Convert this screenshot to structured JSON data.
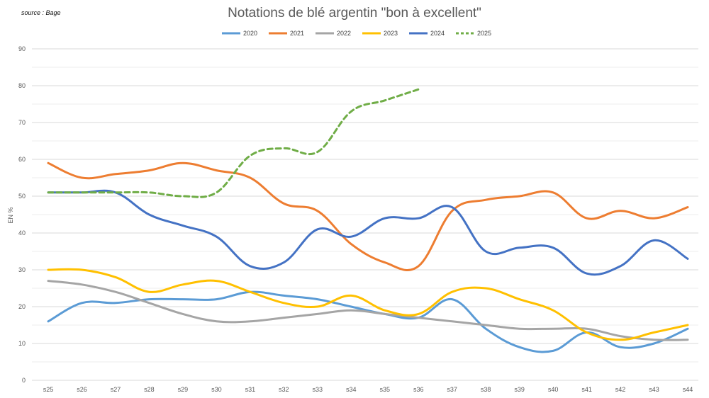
{
  "source": "source : Bage",
  "chart_data": {
    "type": "line",
    "title": "Notations de blé argentin \"bon à excellent\"",
    "xlabel": "",
    "ylabel": "EN %",
    "ylim": [
      0,
      90
    ],
    "yticks": [
      0,
      10,
      20,
      30,
      40,
      50,
      60,
      70,
      80,
      90
    ],
    "grid": true,
    "legend_position": "top",
    "categories": [
      "s25",
      "s26",
      "s27",
      "s28",
      "s29",
      "s30",
      "s31",
      "s32",
      "s33",
      "s34",
      "s35",
      "s36",
      "s37",
      "s38",
      "s39",
      "s40",
      "s41",
      "s42",
      "s43",
      "s44"
    ],
    "series": [
      {
        "name": "2020",
        "color": "#5b9bd5",
        "dash": false,
        "values": [
          16,
          21,
          21,
          22,
          22,
          22,
          24,
          23,
          22,
          20,
          18,
          17,
          22,
          14,
          9,
          8,
          13,
          9,
          10,
          14
        ]
      },
      {
        "name": "2021",
        "color": "#ed7d31",
        "dash": false,
        "values": [
          59,
          55,
          56,
          57,
          59,
          57,
          55,
          48,
          46,
          37,
          32,
          31,
          46,
          49,
          50,
          51,
          44,
          46,
          44,
          47
        ]
      },
      {
        "name": "2022",
        "color": "#a5a5a5",
        "dash": false,
        "values": [
          27,
          26,
          24,
          21,
          18,
          16,
          16,
          17,
          18,
          19,
          18,
          17,
          16,
          15,
          14,
          14,
          14,
          12,
          11,
          11
        ]
      },
      {
        "name": "2023",
        "color": "#ffc000",
        "dash": false,
        "values": [
          30,
          30,
          28,
          24,
          26,
          27,
          24,
          21,
          20,
          23,
          19,
          18,
          24,
          25,
          22,
          19,
          13,
          11,
          13,
          15
        ]
      },
      {
        "name": "2024",
        "color": "#4472c4",
        "dash": false,
        "values": [
          51,
          51,
          51,
          45,
          42,
          39,
          31,
          32,
          41,
          39,
          44,
          44,
          47,
          35,
          36,
          36,
          29,
          31,
          38,
          33
        ]
      },
      {
        "name": "2025",
        "color": "#70ad47",
        "dash": true,
        "values": [
          51,
          51,
          51,
          51,
          50,
          51,
          61,
          63,
          62,
          73,
          76,
          79,
          null,
          null,
          null,
          null,
          null,
          null,
          null,
          null
        ]
      }
    ]
  }
}
